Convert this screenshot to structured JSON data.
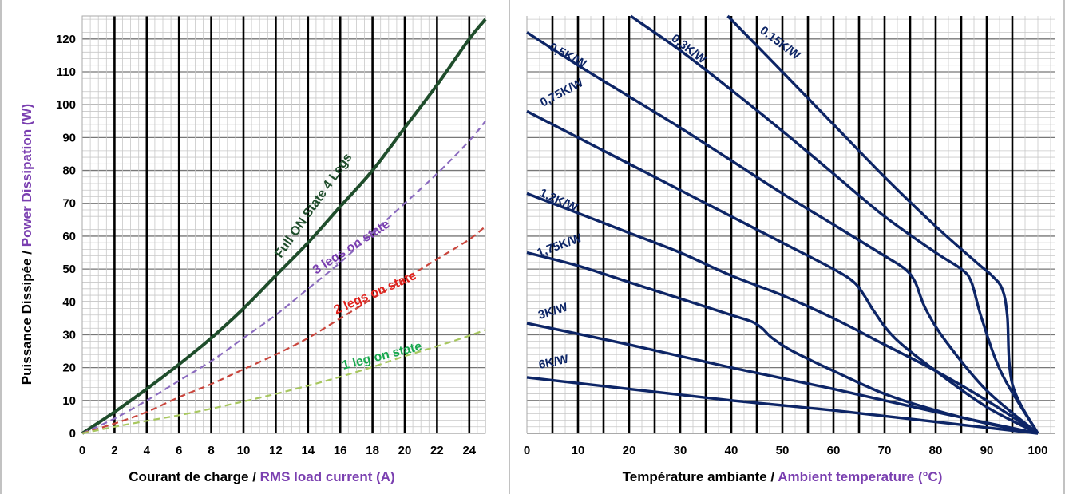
{
  "chart_data": [
    {
      "type": "line",
      "xlabel": {
        "fr": "Courant de charge / ",
        "en": "RMS load current (A)"
      },
      "ylabel": {
        "fr": "Puissance Dissipée / ",
        "en": "Power Dissipation (W)"
      },
      "xlim": [
        0,
        25
      ],
      "ylim": [
        0,
        127
      ],
      "x_ticks": [
        0,
        2,
        4,
        6,
        8,
        10,
        12,
        14,
        16,
        18,
        20,
        22,
        24
      ],
      "y_ticks": [
        0,
        10,
        20,
        30,
        40,
        50,
        60,
        70,
        80,
        90,
        100,
        110,
        120
      ],
      "grid": true,
      "series": [
        {
          "name": "Full ON State 4 Legs",
          "color": "#1f4d2b",
          "style": "solid",
          "x": [
            0,
            2,
            4,
            6,
            8,
            10,
            12,
            14,
            16,
            18,
            20,
            22,
            24,
            25
          ],
          "y": [
            0,
            6.5,
            13.5,
            21,
            29,
            38,
            48,
            58,
            69,
            80,
            93,
            106,
            120,
            126
          ]
        },
        {
          "name": "3 legs on state",
          "color": "#8b6bbf",
          "style": "dashed",
          "x": [
            0,
            2,
            4,
            6,
            8,
            10,
            12,
            14,
            16,
            18,
            20,
            22,
            24,
            25
          ],
          "y": [
            0,
            4.5,
            10,
            16,
            22,
            29,
            36,
            44,
            52,
            61,
            70,
            79,
            89,
            95
          ]
        },
        {
          "name": "2 legs on state",
          "color": "#c9453c",
          "style": "dashed",
          "x": [
            0,
            2,
            4,
            6,
            8,
            10,
            12,
            14,
            16,
            18,
            20,
            22,
            24,
            25
          ],
          "y": [
            0,
            3,
            6.5,
            11,
            15,
            19.5,
            24,
            29,
            35,
            41,
            47,
            53,
            59,
            63
          ]
        },
        {
          "name": "1 leg on state",
          "color": "#a7c75e",
          "style": "dashed",
          "x": [
            0,
            2,
            4,
            6,
            8,
            10,
            12,
            14,
            16,
            18,
            20,
            22,
            24,
            25
          ],
          "y": [
            0,
            2,
            3.8,
            5.5,
            7.5,
            9.7,
            12,
            14.5,
            17.2,
            20.2,
            23.5,
            26.5,
            29.7,
            31.5
          ]
        }
      ],
      "labels": [
        {
          "text": "Full ON State 4 Legs",
          "color": "#1f4d2b"
        },
        {
          "text": "3 legs on state",
          "color": "#7a3fb0"
        },
        {
          "text": "2 legs on state",
          "color": "#e0201b"
        },
        {
          "text": "1 leg on state",
          "color": "#18a84e"
        }
      ]
    },
    {
      "type": "line",
      "xlabel": {
        "fr": "Température ambiante / ",
        "en": "Ambient temperature (°C)"
      },
      "ylabel": null,
      "xlim": [
        0,
        100
      ],
      "ylim": [
        0,
        127
      ],
      "x_ticks": [
        0,
        10,
        20,
        30,
        40,
        50,
        60,
        70,
        80,
        90,
        100
      ],
      "grid": true,
      "series": [
        {
          "name": "0,15K/W",
          "color": "#0d2566",
          "x": [
            39.3,
            50,
            60,
            70,
            80,
            88,
            91,
            93,
            94,
            95,
            100
          ],
          "y": [
            127,
            110,
            94,
            78,
            63,
            52,
            48,
            44,
            36,
            15,
            0
          ]
        },
        {
          "name": "0,3K/W",
          "color": "#0d2566",
          "x": [
            20.3,
            30,
            40,
            50,
            60,
            70,
            80,
            85,
            87,
            89,
            93,
            100
          ],
          "y": [
            127,
            116.5,
            104.5,
            92,
            79,
            66,
            55,
            50,
            46,
            35,
            18,
            0
          ]
        },
        {
          "name": "0,5K/W",
          "color": "#0d2566",
          "x": [
            0,
            10,
            20,
            30,
            40,
            50,
            60,
            70,
            74,
            76,
            78,
            82,
            90,
            100
          ],
          "y": [
            122,
            112,
            102.5,
            93,
            83,
            73,
            63.5,
            54,
            50,
            46,
            38,
            28,
            13,
            0
          ]
        },
        {
          "name": "0,75K/W",
          "color": "#0d2566",
          "x": [
            0,
            10,
            20,
            30,
            40,
            50,
            60,
            64,
            66,
            68,
            72,
            80,
            90,
            100
          ],
          "y": [
            98,
            90,
            82,
            74,
            66,
            58,
            50,
            46,
            42,
            37,
            29,
            19,
            8,
            0
          ]
        },
        {
          "name": "1,2K/W",
          "color": "#0d2566",
          "x": [
            0,
            10,
            20,
            30,
            40,
            50,
            60,
            70,
            80,
            90,
            100
          ],
          "y": [
            73,
            67,
            61,
            55,
            48,
            42,
            35,
            27,
            19,
            10,
            0
          ]
        },
        {
          "name": "1,75K/W",
          "color": "#0d2566",
          "x": [
            0,
            10,
            20,
            30,
            40,
            44,
            46,
            48,
            52,
            60,
            70,
            80,
            90,
            100
          ],
          "y": [
            55,
            51,
            46,
            41,
            36,
            34,
            32,
            29,
            25,
            19,
            12,
            7,
            3,
            0
          ]
        },
        {
          "name": "3K/W",
          "color": "#0d2566",
          "x": [
            0,
            20,
            40,
            60,
            80,
            100
          ],
          "y": [
            33.5,
            27,
            20,
            13.5,
            6.5,
            0
          ]
        },
        {
          "name": "6K/W",
          "color": "#0d2566",
          "x": [
            0,
            20,
            40,
            60,
            80,
            100
          ],
          "y": [
            17,
            13.5,
            10,
            7,
            3.5,
            0
          ]
        }
      ]
    }
  ]
}
